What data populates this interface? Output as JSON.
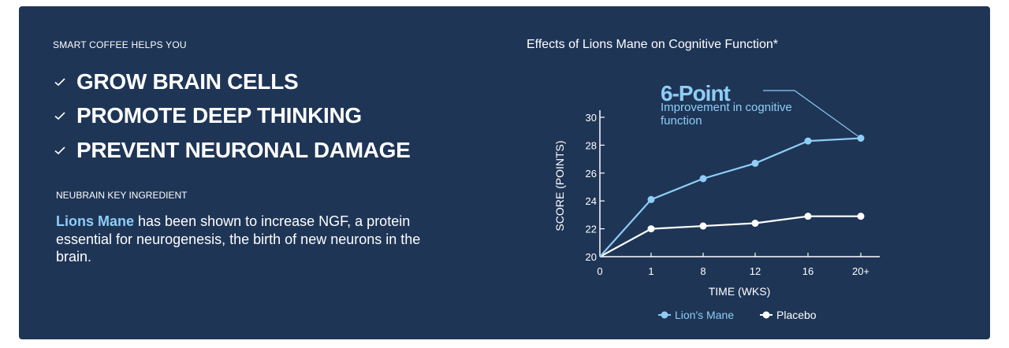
{
  "left": {
    "eyebrow": "SMART COFFEE HELPS YOU",
    "benefits": [
      "GROW BRAIN CELLS",
      "PROMOTE DEEP THINKING",
      "PREVENT NEURONAL DAMAGE"
    ],
    "key_label": "NEUBRAIN KEY INGREDIENT",
    "highlight": "Lions Mane",
    "description": " has been shown to increase NGF, a protein essential for neurogenesis, the birth of new neurons in the brain."
  },
  "callout": {
    "big": "6-Point",
    "small": "Improvement in cognitive function"
  },
  "colors": {
    "background": "#1e3556",
    "accent": "#8fcdf5",
    "placebo": "#ffffff"
  },
  "chart_data": {
    "type": "line",
    "title": "Effects of Lions Mane on Cognitive Function*",
    "xlabel": "TIME (WKS)",
    "ylabel": "SCORE (POINTS)",
    "categories": [
      "0",
      "1",
      "8",
      "12",
      "16",
      "20+"
    ],
    "yticks": [
      20,
      22,
      24,
      26,
      28,
      30
    ],
    "ylim": [
      20,
      30
    ],
    "series": [
      {
        "name": "Lion's Mane",
        "color": "#8fcdf5",
        "values": [
          20,
          24.1,
          25.6,
          26.7,
          28.3,
          28.5
        ]
      },
      {
        "name": "Placebo",
        "color": "#ffffff",
        "values": [
          20,
          22.0,
          22.2,
          22.4,
          22.9,
          22.9
        ]
      }
    ],
    "legend_position": "bottom-center",
    "grid": false
  }
}
